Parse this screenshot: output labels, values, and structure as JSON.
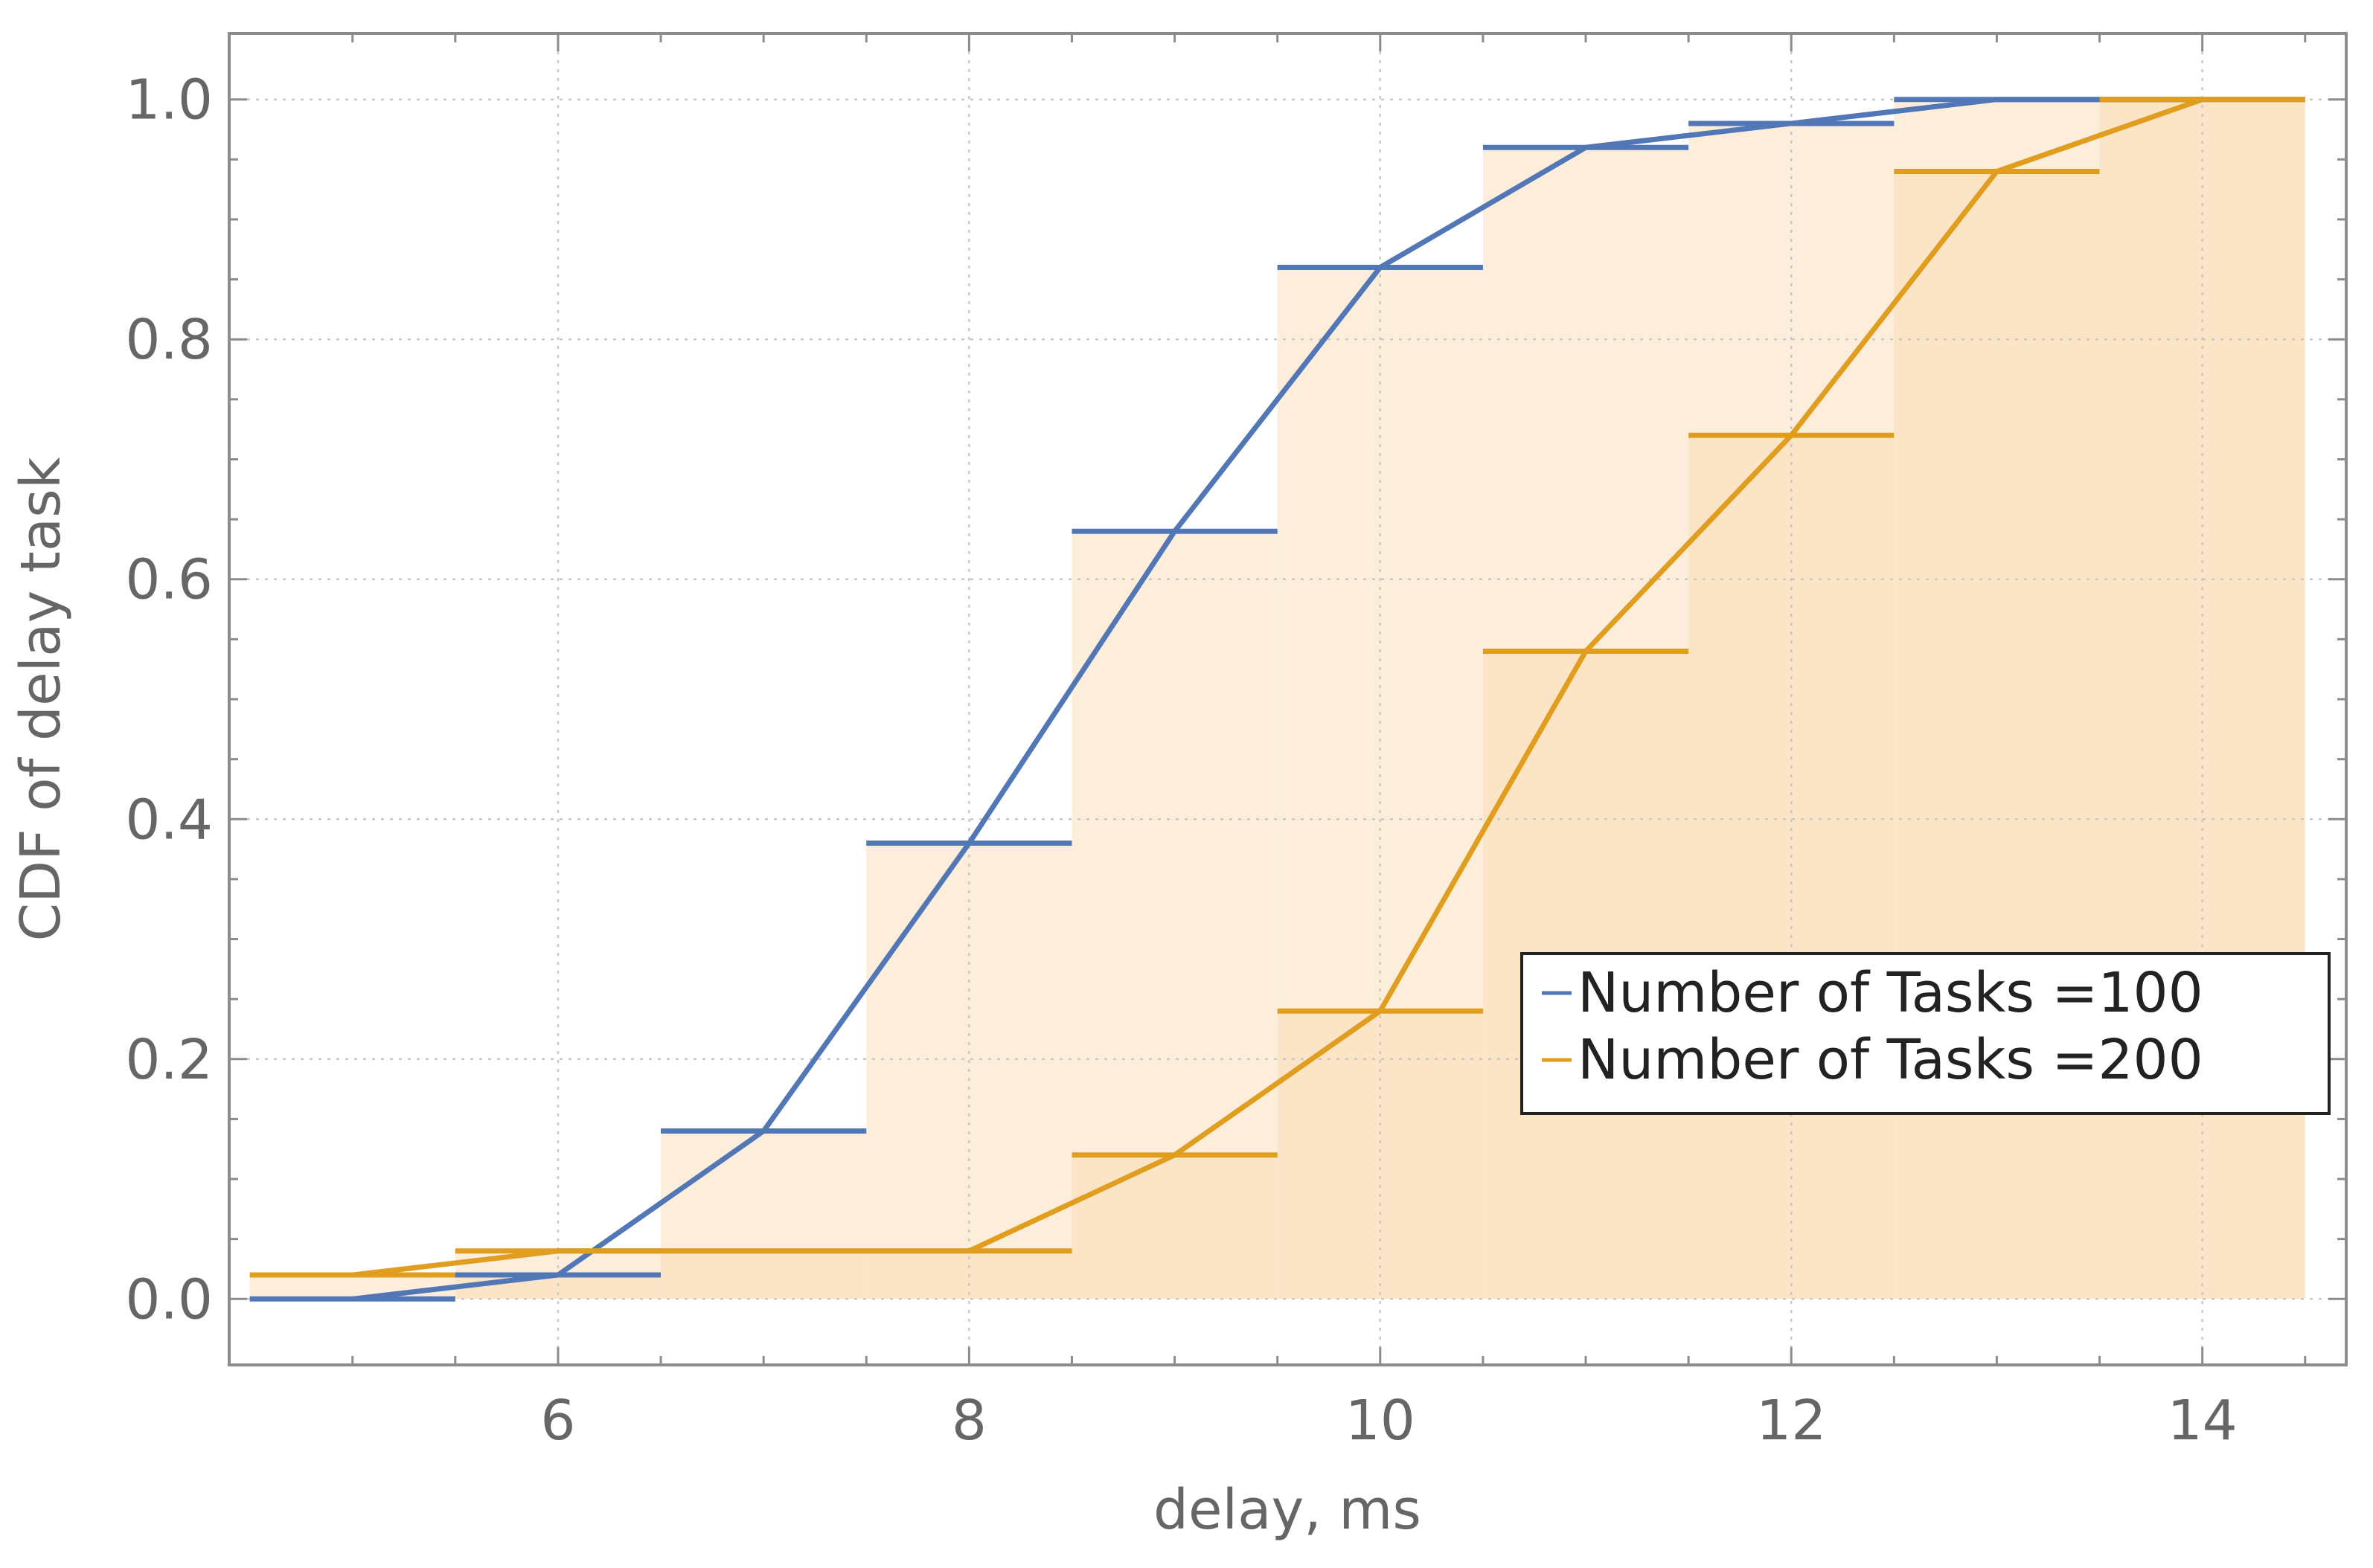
{
  "chart_data": {
    "type": "line",
    "xlabel": "delay, ms",
    "ylabel": "CDF of delay task",
    "xlim": [
      4.4,
      14.7
    ],
    "ylim": [
      -0.055,
      1.055
    ],
    "x_ticks": [
      6,
      8,
      10,
      12,
      14
    ],
    "x_tick_labels": [
      "6",
      "8",
      "10",
      "12",
      "14"
    ],
    "y_ticks": [
      0.0,
      0.2,
      0.4,
      0.6,
      0.8,
      1.0
    ],
    "y_tick_labels": [
      "0.0",
      "0.2",
      "0.4",
      "0.6",
      "0.8",
      "1.0"
    ],
    "grid": true,
    "legend_position": "bottom-right",
    "series": [
      {
        "name": "Number of Tasks =100",
        "color": "#5277b6",
        "x": [
          5,
          6,
          7,
          8,
          9,
          10,
          11,
          12,
          13,
          14
        ],
        "values": [
          0.0,
          0.02,
          0.14,
          0.38,
          0.64,
          0.86,
          0.96,
          0.98,
          1.0,
          1.0
        ]
      },
      {
        "name": "Number of Tasks =200",
        "color": "#e09d1e",
        "x": [
          5,
          6,
          7,
          8,
          9,
          10,
          11,
          12,
          13,
          14
        ],
        "values": [
          0.02,
          0.04,
          0.04,
          0.04,
          0.12,
          0.24,
          0.54,
          0.72,
          0.94,
          1.0
        ]
      }
    ],
    "fill_colors": [
      "#fdeedd",
      "#fbdcb8"
    ]
  }
}
